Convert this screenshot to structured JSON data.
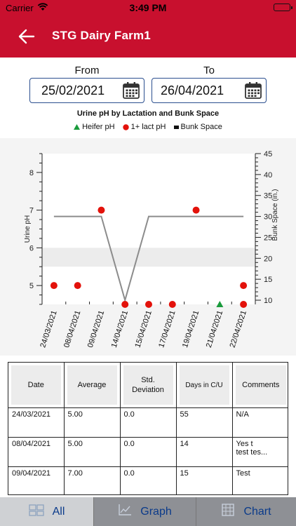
{
  "status_bar": {
    "carrier": "Carrier",
    "time": "3:49 PM"
  },
  "header": {
    "title": "STG Dairy Farm1"
  },
  "date_range": {
    "from_label": "From",
    "from_value": "25/02/2021",
    "to_label": "To",
    "to_value": "26/04/2021"
  },
  "colors": {
    "brand_red": "#c8102e",
    "heifer": "#1a9b3c",
    "lact": "#e3120b",
    "bunk_line": "#8c8c8c"
  },
  "chart_data": {
    "type": "scatter",
    "title": "Urine pH by Lactation and Bunk Space",
    "legend": [
      "Heifer pH",
      "1+ lact pH",
      "Bunk Space"
    ],
    "ylabel": "Urine pH",
    "y2label": "Bunk Space (in.)",
    "ylim": [
      4.5,
      8.5
    ],
    "y2lim": [
      9,
      45
    ],
    "yticks": [
      5,
      6,
      7,
      8
    ],
    "y2ticks": [
      10,
      15,
      20,
      25,
      30,
      35,
      40,
      45
    ],
    "categories": [
      "24/03/2021",
      "08/04/2021",
      "09/04/2021",
      "14/04/2021",
      "15/04/2021",
      "17/04/2021",
      "19/04/2021",
      "21/04/2021",
      "22/04/2021"
    ],
    "series": [
      {
        "name": "1+ lact pH",
        "points": [
          [
            0,
            5.0
          ],
          [
            1,
            5.0
          ],
          [
            2,
            7.0
          ],
          [
            3,
            4.5
          ],
          [
            4,
            4.5
          ],
          [
            5,
            4.5
          ],
          [
            6,
            7.0
          ],
          [
            8,
            5.0
          ],
          [
            8,
            4.5
          ]
        ]
      },
      {
        "name": "Heifer pH",
        "points": [
          [
            7,
            4.5
          ]
        ]
      },
      {
        "name": "Bunk Space",
        "points": [
          [
            0,
            30
          ],
          [
            2,
            30
          ],
          [
            3,
            10
          ],
          [
            4,
            30
          ],
          [
            8,
            30
          ]
        ]
      }
    ],
    "band": [
      5.5,
      6.0
    ]
  },
  "table": {
    "columns": [
      "Date",
      "Average",
      "Std.\nDeviation",
      "Days in C/U",
      "Comments"
    ],
    "rows": [
      [
        "24/03/2021",
        "5.00",
        "0.0",
        "55",
        "N/A"
      ],
      [
        "08/04/2021",
        "5.00",
        "0.0",
        "14",
        "Yes t\ntest tes..."
      ],
      [
        "09/04/2021",
        "7.00",
        "0.0",
        "15",
        "Test"
      ]
    ]
  },
  "tabs": [
    {
      "label": "All",
      "icon": "all-icon"
    },
    {
      "label": "Graph",
      "icon": "graph-icon"
    },
    {
      "label": "Chart",
      "icon": "chart-icon"
    }
  ]
}
